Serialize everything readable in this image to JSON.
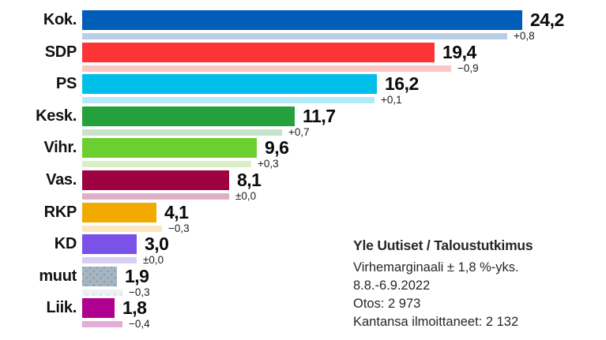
{
  "chart_data": {
    "type": "bar",
    "orientation": "horizontal",
    "unit": "%",
    "note": "dark bar = current support, light bar = previous poll (current minus change)",
    "categories": [
      "Kok.",
      "SDP",
      "PS",
      "Kesk.",
      "Vihr.",
      "Vas.",
      "RKP",
      "KD",
      "muut",
      "Liik."
    ],
    "parties": [
      {
        "label": "Kok.",
        "value": 24.2,
        "value_label": "24,2",
        "change": 0.8,
        "change_label": "+0,8",
        "previous": 23.4,
        "color": "#005eb8",
        "light_color": "#b9cfe6",
        "pattern": "solid"
      },
      {
        "label": "SDP",
        "value": 19.4,
        "value_label": "19,4",
        "change": -0.9,
        "change_label": "−0,9",
        "previous": 20.3,
        "color": "#fd3436",
        "light_color": "#fcc6c6",
        "pattern": "solid"
      },
      {
        "label": "PS",
        "value": 16.2,
        "value_label": "16,2",
        "change": 0.1,
        "change_label": "+0,1",
        "previous": 16.1,
        "color": "#00c0ea",
        "light_color": "#b4e9f8",
        "pattern": "solid"
      },
      {
        "label": "Kesk.",
        "value": 11.7,
        "value_label": "11,7",
        "change": 0.7,
        "change_label": "+0,7",
        "previous": 11.0,
        "color": "#24a03c",
        "light_color": "#c5e4cb",
        "pattern": "solid"
      },
      {
        "label": "Vihr.",
        "value": 9.6,
        "value_label": "9,6",
        "change": 0.3,
        "change_label": "+0,3",
        "previous": 9.3,
        "color": "#6ccf30",
        "light_color": "#d9efc6",
        "pattern": "solid"
      },
      {
        "label": "Vas.",
        "value": 8.1,
        "value_label": "8,1",
        "change": 0.0,
        "change_label": "±0,0",
        "previous": 8.1,
        "color": "#9e0141",
        "light_color": "#dfafc6",
        "pattern": "solid"
      },
      {
        "label": "RKP",
        "value": 4.1,
        "value_label": "4,1",
        "change": -0.3,
        "change_label": "−0,3",
        "previous": 4.4,
        "color": "#f2a900",
        "light_color": "#fbe8c2",
        "pattern": "solid"
      },
      {
        "label": "KD",
        "value": 3.0,
        "value_label": "3,0",
        "change": 0.0,
        "change_label": "±0,0",
        "previous": 3.0,
        "color": "#7a52e8",
        "light_color": "#d8cff5",
        "pattern": "solid"
      },
      {
        "label": "muut",
        "value": 1.9,
        "value_label": "1,9",
        "change": -0.3,
        "change_label": "−0,3",
        "previous": 2.2,
        "color": "#a9b4bc",
        "light_color": "#edf0f3",
        "pattern": "dots"
      },
      {
        "label": "Liik.",
        "value": 1.8,
        "value_label": "1,8",
        "change": -0.4,
        "change_label": "−0,4",
        "previous": 2.2,
        "color": "#af0090",
        "light_color": "#e2aed6",
        "pattern": "solid"
      }
    ],
    "xlim": [
      0,
      26
    ]
  },
  "source_block": {
    "title": "Yle Uutiset / Taloustutkimus",
    "lines": [
      "Virhemarginaali ± 1,8 %-yks.",
      "8.8.-6.9.2022",
      "Otos: 2 973",
      "Kantansa ilmoittaneet: 2 132"
    ]
  }
}
